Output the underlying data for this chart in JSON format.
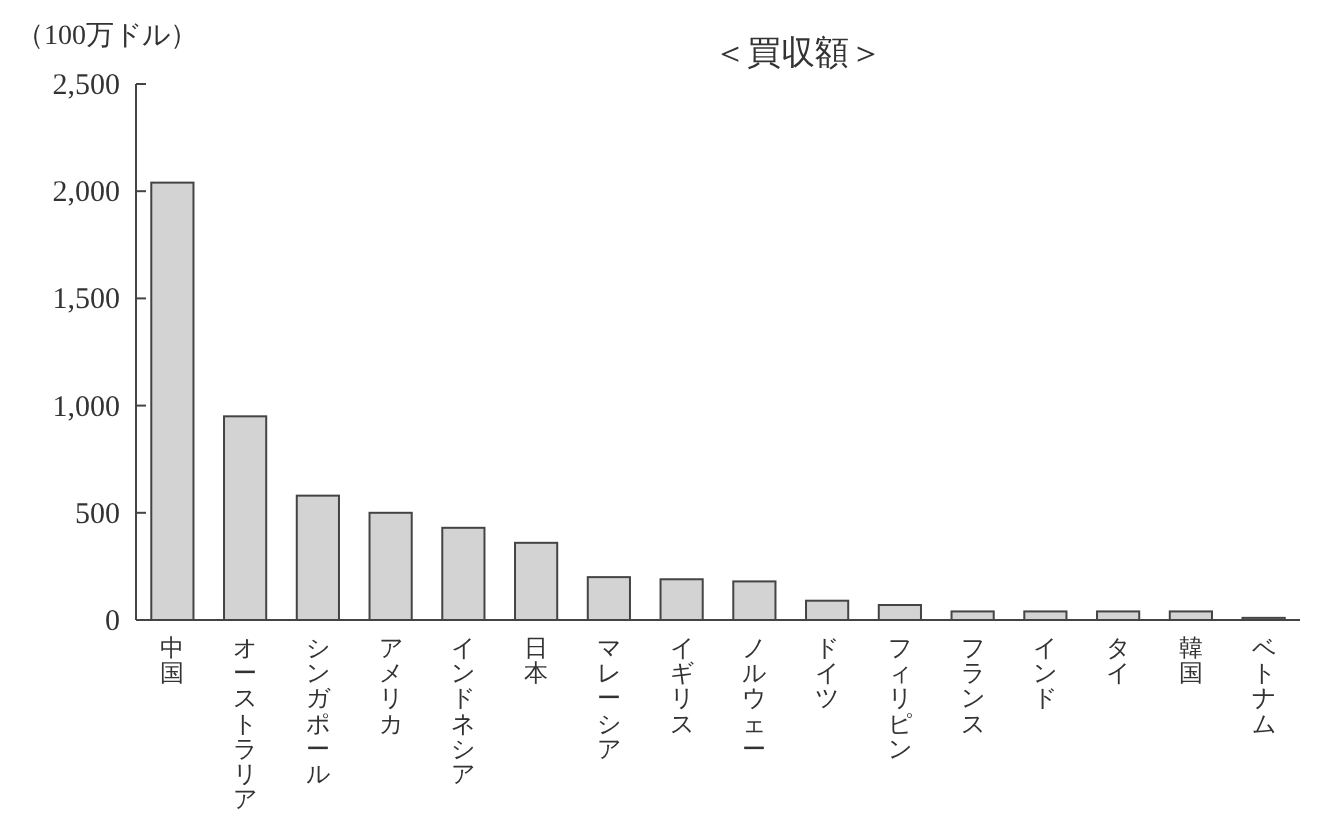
{
  "chart_data": {
    "type": "bar",
    "title": "＜買収額＞",
    "ylabel": "（100万ドル）",
    "categories": [
      "中国",
      "オーストラリア",
      "シンガポール",
      "アメリカ",
      "インドネシア",
      "日本",
      "マレーシア",
      "イギリス",
      "ノルウェー",
      "ドイツ",
      "フィリピン",
      "フランス",
      "インド",
      "タイ",
      "韓国",
      "ベトナム"
    ],
    "values": [
      2040,
      950,
      580,
      500,
      430,
      360,
      200,
      190,
      180,
      90,
      70,
      40,
      40,
      40,
      40,
      10
    ],
    "color": "#d3d3d3",
    "ylim": [
      0,
      2500
    ],
    "yticks": [
      0,
      {
        "value": 500,
        "label": "500"
      },
      {
        "value": 1000,
        "label": "1,000"
      },
      {
        "value": 1500,
        "label": "1,500"
      },
      {
        "value": 2000,
        "label": "2,000"
      },
      {
        "value": 2500,
        "label": "2,500"
      }
    ]
  }
}
